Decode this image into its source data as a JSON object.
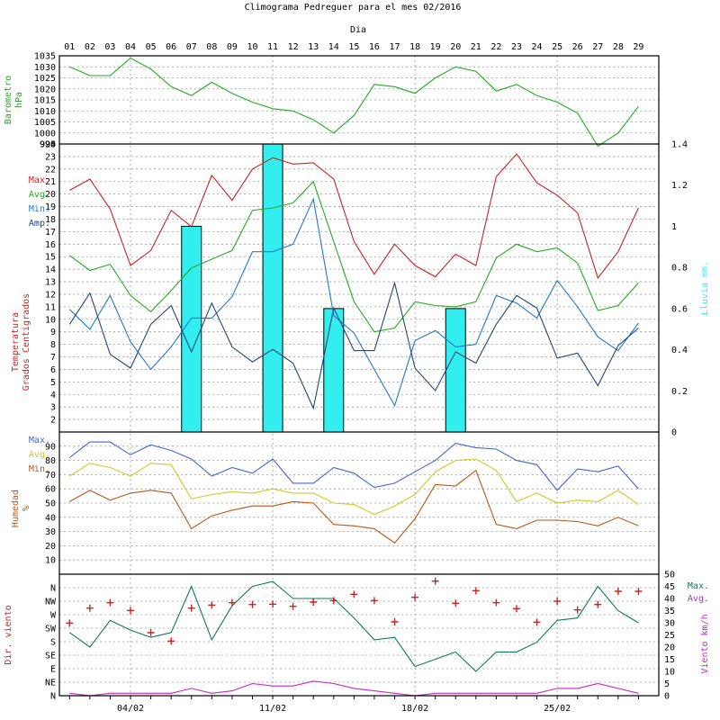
{
  "chart_data": {
    "title": "Climograma Pedreguer para el mes 02/2016",
    "type": "line",
    "x_axis_label": "Dia",
    "days": [
      "01",
      "02",
      "03",
      "04",
      "05",
      "06",
      "07",
      "08",
      "09",
      "10",
      "11",
      "12",
      "13",
      "14",
      "15",
      "16",
      "17",
      "18",
      "19",
      "20",
      "21",
      "22",
      "23",
      "24",
      "25",
      "26",
      "27",
      "28",
      "29"
    ],
    "date_ticks": [
      {
        "day": 4,
        "label": "04/02"
      },
      {
        "day": 11,
        "label": "11/02"
      },
      {
        "day": 18,
        "label": "18/02"
      },
      {
        "day": 25,
        "label": "25/02"
      }
    ],
    "pressure": {
      "ylabel": "Barometro hPa",
      "ylim": [
        995,
        1035
      ],
      "ticks": [
        1035,
        1030,
        1025,
        1020,
        1015,
        1010,
        1005,
        1000,
        995
      ],
      "values": [
        1030,
        1026,
        1026,
        1034,
        1029,
        1021,
        1017,
        1023,
        1018,
        1014,
        1011,
        1010,
        1006,
        1000,
        1008,
        1022,
        1021,
        1018,
        1025,
        1030,
        1028,
        1019,
        1022,
        1017,
        1014,
        1009,
        994,
        1000,
        1012
      ],
      "color": "#22aa22"
    },
    "temperature": {
      "ylabel_line1": "Temperatura",
      "ylabel_line2": "Grados Centigrados",
      "ylim": [
        1,
        24
      ],
      "ticks": [
        2,
        3,
        4,
        5,
        6,
        7,
        8,
        9,
        10,
        11,
        12,
        13,
        14,
        15,
        16,
        17,
        18,
        19,
        20,
        21,
        22,
        23
      ],
      "series": [
        {
          "name": "Max.",
          "color": "#cc2222",
          "values": [
            20.3,
            21.2,
            18.8,
            14.3,
            15.5,
            18.7,
            17.4,
            21.5,
            19.5,
            22.0,
            22.9,
            22.4,
            22.5,
            21.2,
            16.2,
            13.6,
            16.0,
            14.3,
            13.4,
            15.2,
            14.3,
            21.4,
            23.2,
            20.9,
            19.9,
            18.5,
            13.3,
            15.4,
            18.9
          ]
        },
        {
          "name": "Avg.",
          "color": "#22aa22",
          "values": [
            15.1,
            13.9,
            14.4,
            11.9,
            10.6,
            12.3,
            14.1,
            14.8,
            15.5,
            18.7,
            18.9,
            19.3,
            21.0,
            16.2,
            11.4,
            9.0,
            9.3,
            11.4,
            11.1,
            11.0,
            11.4,
            14.9,
            16.0,
            15.4,
            15.7,
            14.5,
            10.7,
            11.1,
            12.9
          ]
        },
        {
          "name": "Min.",
          "color": "#2277cc",
          "values": [
            10.8,
            9.2,
            11.9,
            8.2,
            6.0,
            7.8,
            10.1,
            10.1,
            11.8,
            15.4,
            15.4,
            16.0,
            19.6,
            10.3,
            8.9,
            6.0,
            3.1,
            8.3,
            9.1,
            7.8,
            8.0,
            11.9,
            11.3,
            10.1,
            13.1,
            11.0,
            8.6,
            7.5,
            9.7
          ]
        },
        {
          "name": "Amp.",
          "color": "#224477",
          "values": [
            9.6,
            12.1,
            7.2,
            6.1,
            9.6,
            11.1,
            7.4,
            11.3,
            7.8,
            6.6,
            7.6,
            6.5,
            2.9,
            10.9,
            7.5,
            7.5,
            12.9,
            6.1,
            4.3,
            7.4,
            6.5,
            9.6,
            11.9,
            10.9,
            6.9,
            7.3,
            4.7,
            7.9,
            9.3
          ]
        }
      ]
    },
    "rain": {
      "ylabel": "Lluvia mm.",
      "ylim": [
        0,
        1.4
      ],
      "ticks": [
        "0",
        "0.2",
        "0.4",
        "0.6",
        "0.8",
        "1",
        "1.2",
        "1.4"
      ],
      "color": "#33eeee",
      "bars": [
        {
          "day": 7,
          "value": 1.0
        },
        {
          "day": 11,
          "value": 1.4
        },
        {
          "day": 14,
          "value": 0.6
        },
        {
          "day": 20,
          "value": 0.6
        }
      ]
    },
    "humidity": {
      "ylabel_line1": "Humedad",
      "ylabel_line2": "%",
      "ylim": [
        0,
        100
      ],
      "ticks": [
        10,
        20,
        30,
        40,
        50,
        60,
        70,
        80,
        90
      ],
      "series": [
        {
          "name": "Max.",
          "color": "#4466cc",
          "values": [
            82,
            93,
            93,
            84,
            91,
            87,
            81,
            69,
            75,
            71,
            81,
            64,
            64,
            75,
            71,
            61,
            64,
            72,
            80,
            92,
            89,
            88,
            80,
            77,
            59,
            74,
            72,
            76,
            60
          ]
        },
        {
          "name": "Avg.",
          "color": "#cccc22",
          "values": [
            69,
            78,
            75,
            69,
            78,
            77,
            53,
            56,
            58,
            57,
            60,
            57,
            57,
            50,
            49,
            42,
            48,
            56,
            72,
            80,
            81,
            73,
            51,
            57,
            50,
            52,
            51,
            59,
            49
          ]
        },
        {
          "name": "Min.",
          "color": "#bb5511",
          "values": [
            51,
            59,
            52,
            57,
            59,
            57,
            32,
            41,
            45,
            48,
            48,
            51,
            50,
            35,
            34,
            32,
            22,
            39,
            63,
            62,
            73,
            35,
            32,
            38,
            38,
            37,
            34,
            40,
            34
          ]
        }
      ]
    },
    "wind": {
      "dir_label": "Dir. viento",
      "speed_label": "Viento km/h",
      "dir_labels": [
        "N",
        "NE",
        "E",
        "SE",
        "S",
        "SW",
        "W",
        "NW",
        "N"
      ],
      "speed_ylim": [
        0,
        50
      ],
      "speed_ticks": [
        0,
        5,
        10,
        15,
        20,
        25,
        30,
        35,
        40,
        45,
        50
      ],
      "direction_values": [
        242,
        292,
        310,
        284,
        210,
        182,
        292,
        302,
        310,
        304,
        305,
        298,
        312,
        317,
        338,
        317,
        246,
        328,
        382,
        308,
        350,
        310,
        290,
        245,
        315,
        286,
        304,
        348,
        348
      ],
      "direction_color": "#cc2222",
      "series": [
        {
          "name": "Max.",
          "color": "#117755",
          "values": [
            26,
            20,
            31,
            27,
            24,
            26,
            45,
            23,
            37,
            45,
            47,
            40,
            40,
            40,
            32,
            23,
            24,
            12,
            15,
            18,
            10,
            18,
            18,
            22,
            31,
            32,
            45,
            35,
            30
          ]
        },
        {
          "name": "Avg.",
          "color": "#cc22cc",
          "values": [
            1,
            0,
            1,
            1,
            1,
            1,
            3,
            1,
            2,
            5,
            4,
            4,
            6,
            5,
            3,
            2,
            1,
            0,
            1,
            1,
            1,
            1,
            1,
            1,
            3,
            3,
            5,
            3,
            1
          ]
        }
      ]
    }
  }
}
